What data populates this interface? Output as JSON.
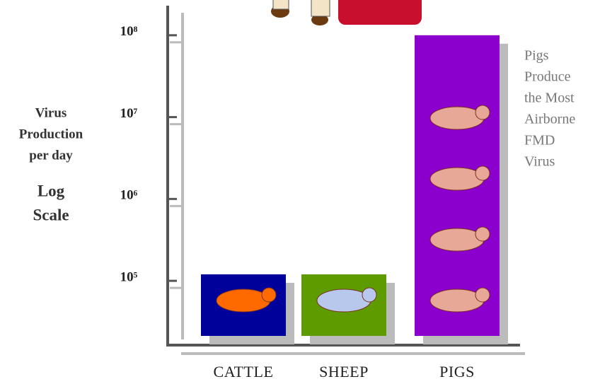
{
  "chart_data": {
    "type": "bar",
    "y_label": [
      "Virus",
      "Production",
      "per day"
    ],
    "scale_label": [
      "Log",
      "Scale"
    ],
    "annotation": [
      "Pigs",
      "Produce",
      "the Most",
      "Airborne",
      "FMD",
      "Virus"
    ],
    "categories": [
      "CATTLE",
      "SHEEP",
      "PIGS"
    ],
    "values": [
      120000,
      120000,
      100000000
    ],
    "colors": [
      "#00009a",
      "#5e9b00",
      "#8b00cc"
    ],
    "log_scale": true,
    "grid": false,
    "ylim": [
      20000,
      200000000
    ],
    "yticks": [
      {
        "value": 100000,
        "label": "10⁵"
      },
      {
        "value": 1000000,
        "label": "10⁶"
      },
      {
        "value": 10000000,
        "label": "10⁷"
      },
      {
        "value": 100000000,
        "label": "10⁸"
      }
    ]
  }
}
